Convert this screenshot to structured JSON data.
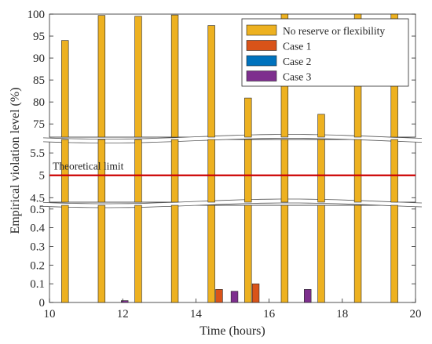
{
  "chart_data": {
    "type": "bar",
    "xlabel": "Time (hours)",
    "ylabel": "Empirical violation level (%)",
    "xlim": [
      10,
      20
    ],
    "x_ticks": [
      "10",
      "12",
      "14",
      "16",
      "18",
      "20"
    ],
    "y_axis_break": true,
    "segments": [
      {
        "name": "upper",
        "ylim": [
          72,
          100
        ],
        "ticks": [
          "75",
          "80",
          "85",
          "90",
          "95",
          "100"
        ]
      },
      {
        "name": "middle",
        "ylim": [
          4.4,
          5.8
        ],
        "ticks": [
          "4.5",
          "5",
          "5.5"
        ]
      },
      {
        "name": "lower",
        "ylim": [
          0,
          0.52
        ],
        "ticks": [
          "0",
          "0.1",
          "0.2",
          "0.3",
          "0.4",
          "0.5"
        ]
      }
    ],
    "x": [
      10.75,
      11.75,
      12.75,
      13.75,
      14.75,
      15.75,
      16.75,
      17.75,
      18.75,
      19.75
    ],
    "series": [
      {
        "name": "No reserve or flexibility",
        "color": "#EDB120",
        "values": [
          94,
          99.7,
          99.5,
          99.8,
          97.4,
          80.9,
          100,
          77.2,
          100,
          100
        ]
      },
      {
        "name": "Case 1",
        "color": "#D95319",
        "values": [
          0,
          0,
          0,
          0,
          0.07,
          0.1,
          0,
          0,
          0,
          0
        ]
      },
      {
        "name": "Case 2",
        "color": "#0072BD",
        "values": [
          0,
          0,
          0,
          0,
          0,
          0,
          0,
          0,
          0,
          0
        ]
      },
      {
        "name": "Case 3",
        "color": "#7E2F8E",
        "values": [
          0,
          0.01,
          0,
          0,
          0.06,
          0,
          0.07,
          0,
          0,
          0
        ]
      }
    ],
    "reference_line": {
      "label": "Theoretical limit",
      "y": 5,
      "color": "#CC0000"
    },
    "legend": "top-right",
    "grid": false
  }
}
